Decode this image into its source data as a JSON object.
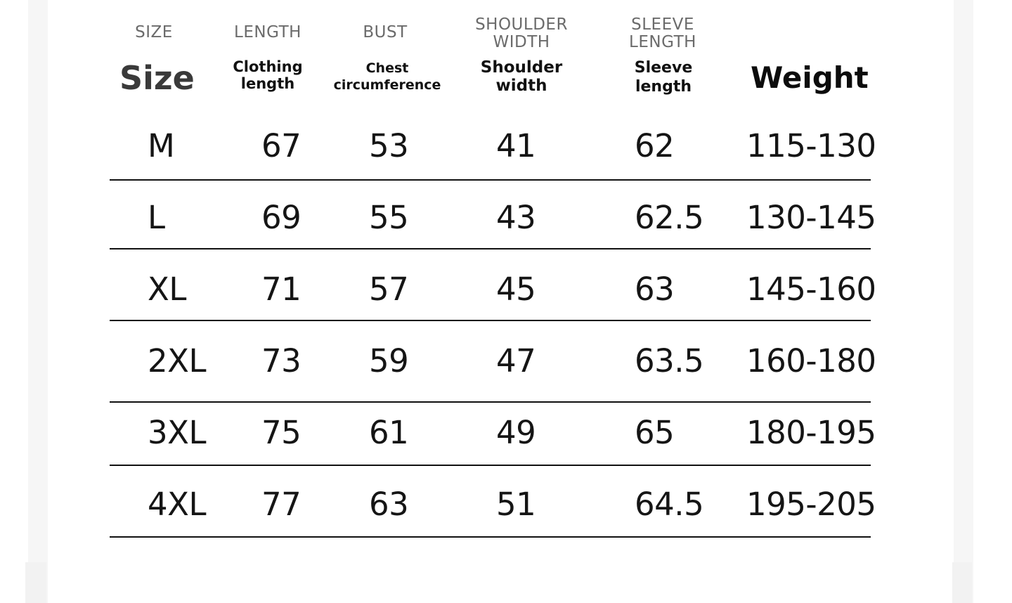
{
  "headers": {
    "size": {
      "en": "SIZE",
      "cn": "Size"
    },
    "length": {
      "en": "LENGTH",
      "cn": "Clothing\nlength"
    },
    "bust": {
      "en": "BUST",
      "cn": "Chest\ncircumference"
    },
    "shoulder": {
      "en": "SHOULDER\nWIDTH",
      "cn": "Shoulder\nwidth"
    },
    "sleeve": {
      "en": "SLEEVE\nLENGTH",
      "cn": "Sleeve\nlength"
    },
    "weight": {
      "cn": "Weight"
    }
  },
  "rows": [
    {
      "size": "M",
      "length": "67",
      "bust": "53",
      "shoulder": "41",
      "sleeve": "62",
      "weight": "115-130"
    },
    {
      "size": "L",
      "length": "69",
      "bust": "55",
      "shoulder": "43",
      "sleeve": "62.5",
      "weight": "130-145"
    },
    {
      "size": "XL",
      "length": "71",
      "bust": "57",
      "shoulder": "45",
      "sleeve": "63",
      "weight": "145-160"
    },
    {
      "size": "2XL",
      "length": "73",
      "bust": "59",
      "shoulder": "47",
      "sleeve": "63.5",
      "weight": "160-180"
    },
    {
      "size": "3XL",
      "length": "75",
      "bust": "61",
      "shoulder": "49",
      "sleeve": "65",
      "weight": "180-195"
    },
    {
      "size": "4XL",
      "length": "77",
      "bust": "63",
      "shoulder": "51",
      "sleeve": "64.5",
      "weight": "195-205"
    }
  ]
}
